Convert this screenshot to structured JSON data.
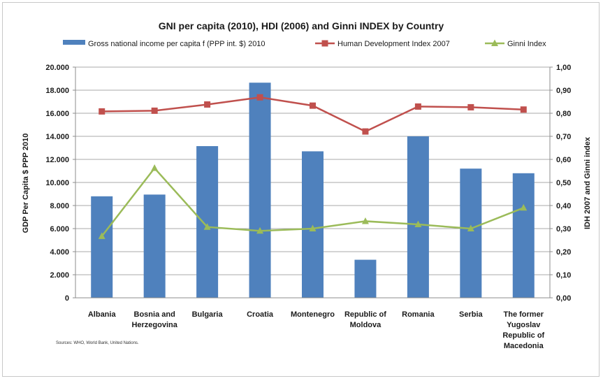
{
  "chart_data": {
    "type": "bar",
    "title": "GNI per capita (2010), HDI (2006) and Ginni INDEX  by Country",
    "categories": [
      [
        "Albania"
      ],
      [
        "Bosnia and",
        "Herzegovina"
      ],
      [
        "Bulgaria"
      ],
      [
        "Croatia"
      ],
      [
        "Montenegro"
      ],
      [
        "Republic of",
        "Moldova"
      ],
      [
        "Romania"
      ],
      [
        "Serbia"
      ],
      [
        "The former",
        "Yugoslav",
        "Republic of",
        "Macedonia"
      ]
    ],
    "series": [
      {
        "name": "Gross national income per capita f (PPP int. $) 2010",
        "type": "bar",
        "axis": "left",
        "color": "#4f81bd",
        "values": [
          8800,
          8950,
          13150,
          18650,
          12700,
          3300,
          14000,
          11200,
          10800
        ]
      },
      {
        "name": "Human Development Index 2007",
        "type": "line",
        "axis": "right",
        "color": "#c0504d",
        "marker": "square",
        "values": [
          0.808,
          0.811,
          0.838,
          0.869,
          0.833,
          0.721,
          0.829,
          0.826,
          0.816
        ]
      },
      {
        "name": "Ginni Index",
        "type": "line",
        "axis": "right",
        "color": "#9bbb59",
        "marker": "triangle",
        "values": [
          0.267,
          0.562,
          0.307,
          0.29,
          0.3,
          0.332,
          0.318,
          0.3,
          0.39
        ]
      }
    ],
    "y_left": {
      "label": "GDP Per Capita $ PPP 2010",
      "ylim": [
        0,
        20000
      ],
      "ticks": [
        "0",
        "2.000",
        "4.000",
        "6.000",
        "8.000",
        "10.000",
        "12.000",
        "14.000",
        "16.000",
        "18.000",
        "20.000"
      ]
    },
    "y_right": {
      "label": "IDH 2007 and Ginni index",
      "ylim": [
        0,
        1
      ],
      "ticks": [
        "0,00",
        "0,10",
        "0,20",
        "0,30",
        "0,40",
        "0,50",
        "0,60",
        "0,70",
        "0,80",
        "0,90",
        "1,00"
      ]
    },
    "grid": true,
    "legend_position": "top",
    "source": "Sources: WHO, World Bank, United Nations."
  }
}
